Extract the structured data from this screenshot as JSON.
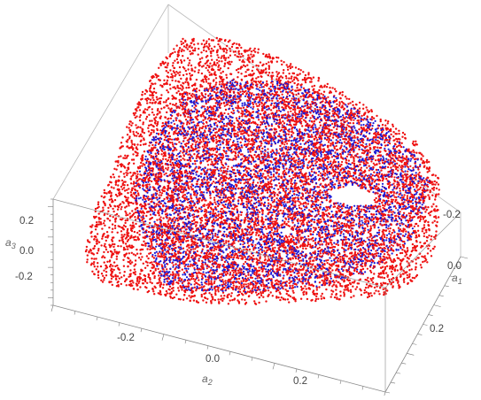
{
  "chart_data": {
    "type": "scatter",
    "dimension": "3d",
    "box": true,
    "grid": false,
    "axes": [
      {
        "id": "a1",
        "label_main": "a",
        "label_sub": "1",
        "ticks": [
          "-0.2",
          "0.0",
          "0.2"
        ]
      },
      {
        "id": "a2",
        "label_main": "a",
        "label_sub": "2",
        "ticks": [
          "-0.2",
          "0.0",
          "0.2"
        ]
      },
      {
        "id": "a3",
        "label_main": "a",
        "label_sub": "3",
        "ticks": [
          "0.2",
          "0.0",
          "-0.2"
        ]
      }
    ],
    "ranges": {
      "a1": [
        -0.35,
        0.35
      ],
      "a2": [
        -0.4,
        0.35
      ],
      "a3": [
        -0.35,
        0.35
      ]
    },
    "series": [
      {
        "color": "#ee1111",
        "approx_points": 30000,
        "shape": "outer toroidal shell"
      },
      {
        "color": "#1a1ad6",
        "approx_points": 15000,
        "shape": "inner core"
      }
    ]
  }
}
